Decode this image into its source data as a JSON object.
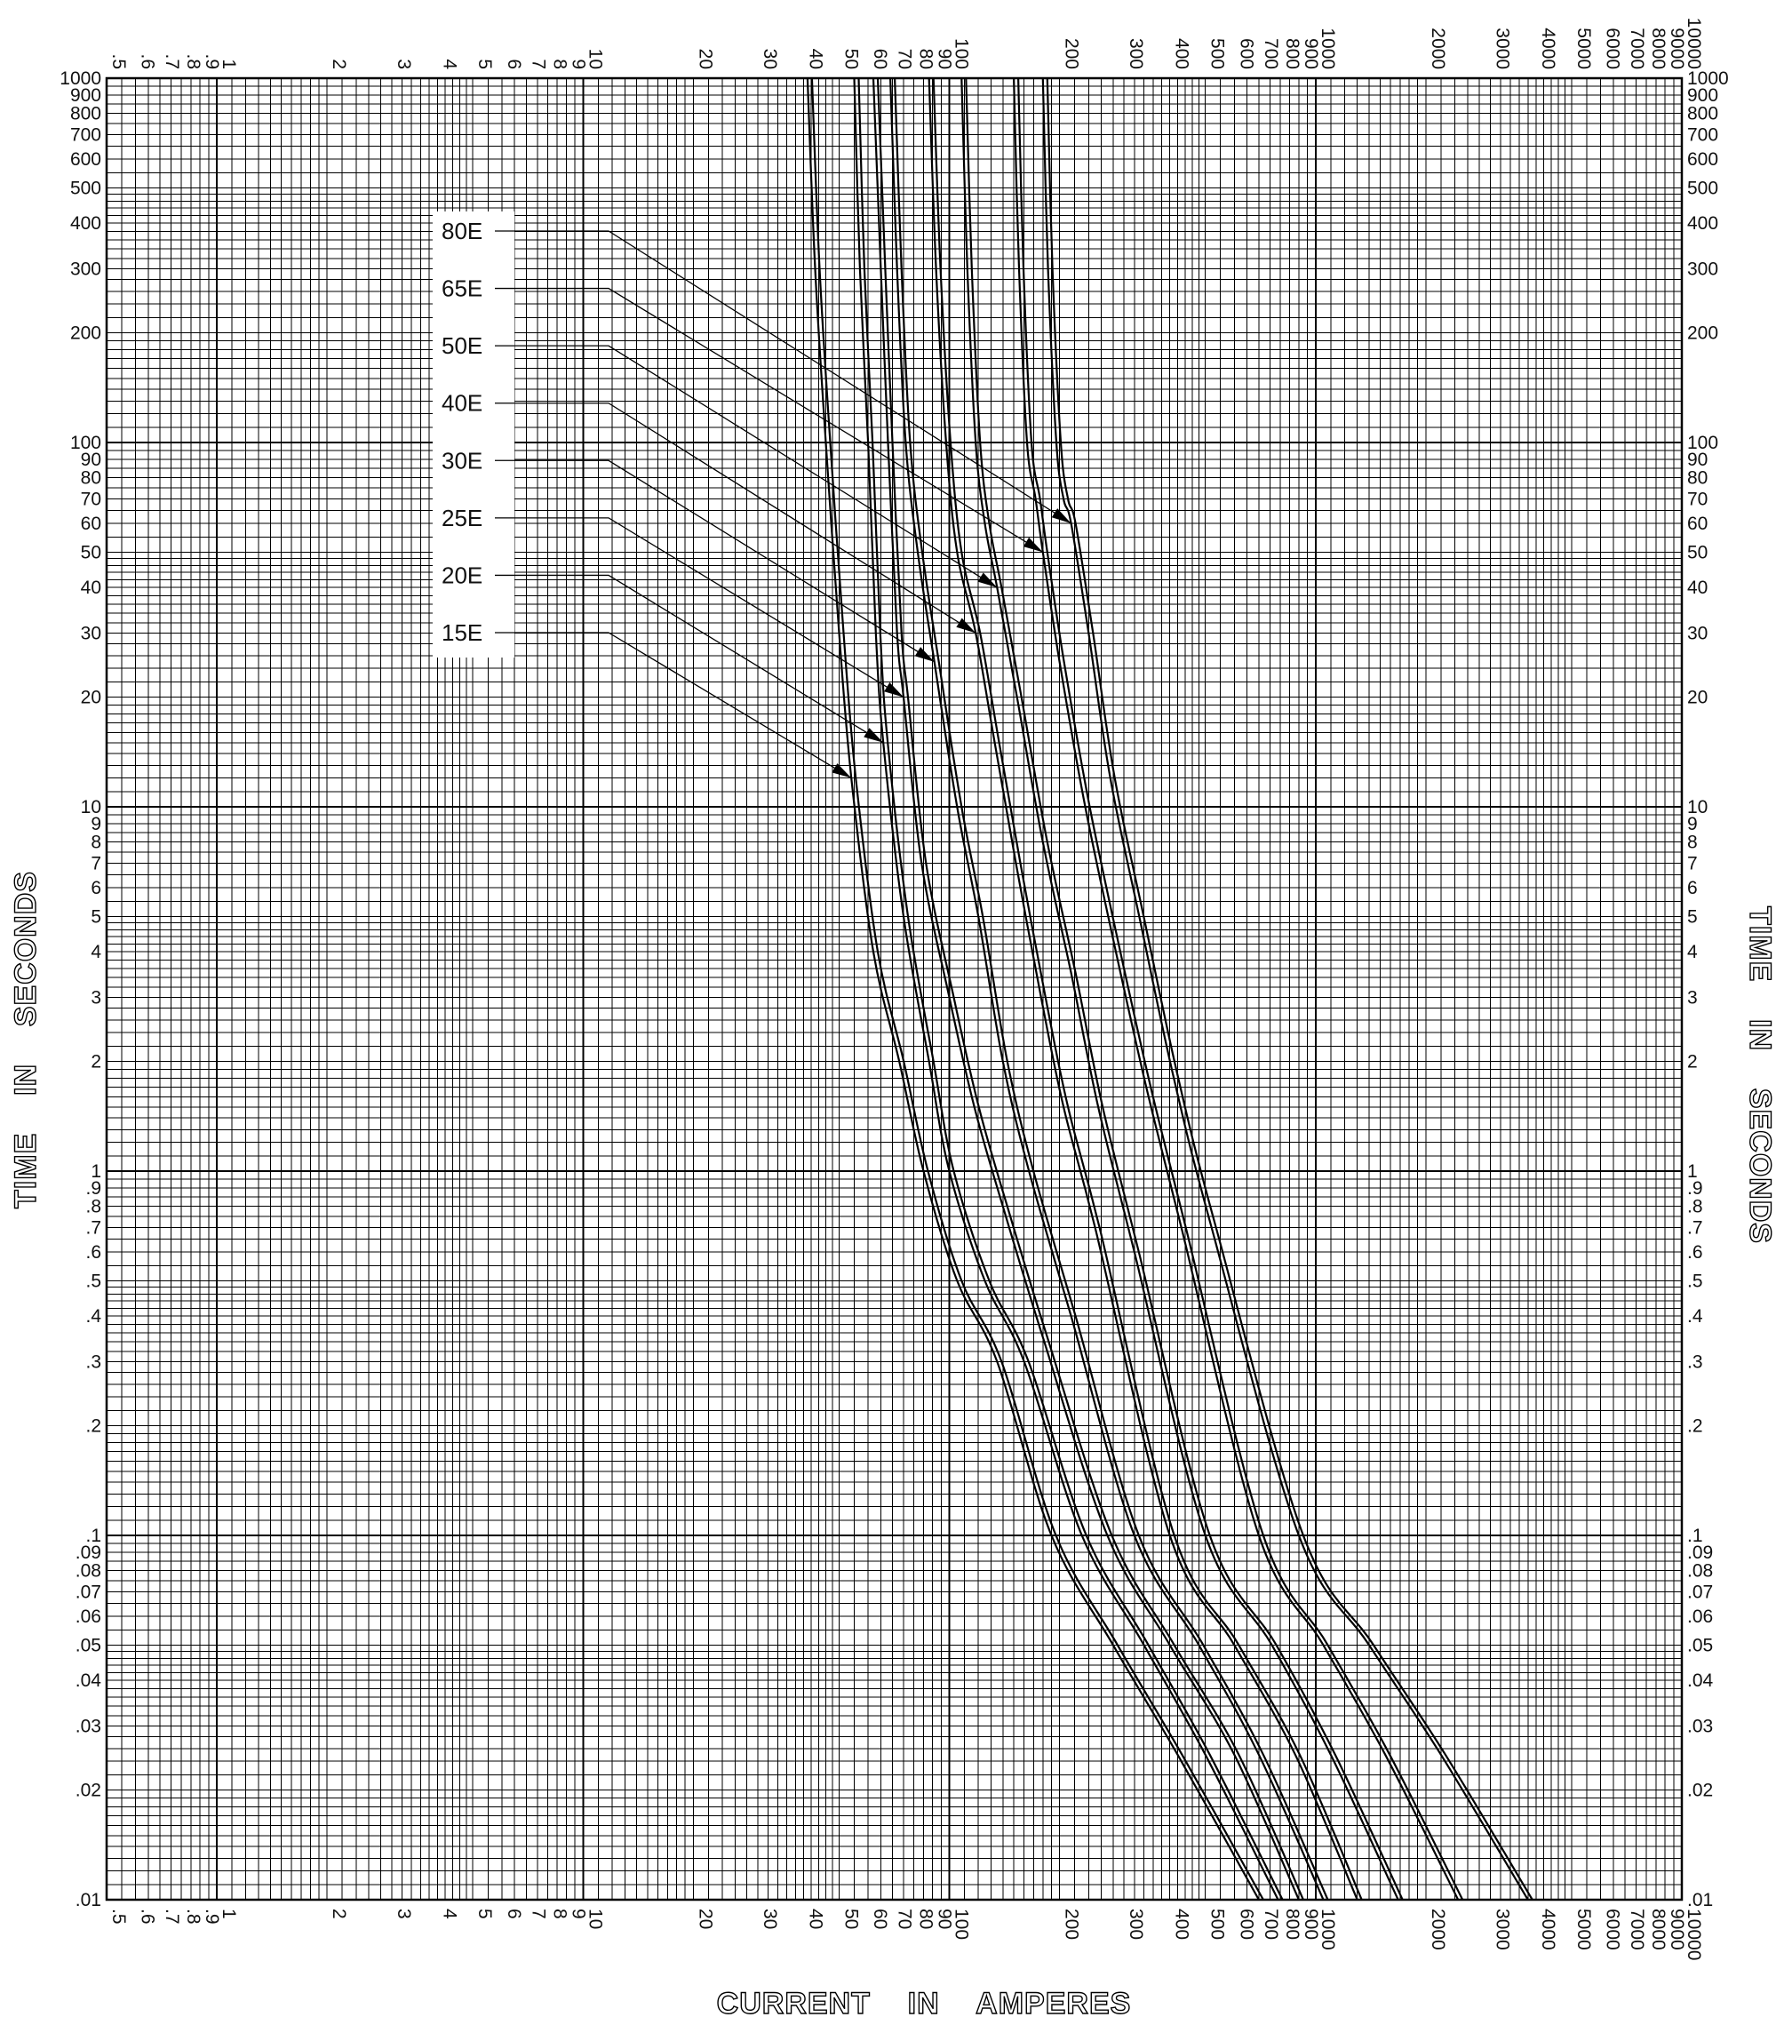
{
  "chart_data": {
    "type": "line",
    "title": "",
    "xlabel": "CURRENT    IN    AMPERES",
    "ylabel_left": "TIME    IN    SECONDS",
    "ylabel_right": "TIME    IN    SECONDS",
    "xscale": "log",
    "yscale": "log",
    "xlim": [
      0.5,
      10000
    ],
    "ylim": [
      0.01,
      1000
    ],
    "grid": true,
    "legend_placement": "upper-left (labels with leader arrows to curves)",
    "x_tick_labels": [
      ".5",
      ".6",
      ".7",
      ".8",
      ".9",
      "1",
      "2",
      "3",
      "4",
      "5",
      "6",
      "7",
      "8",
      "9",
      "10",
      "20",
      "30",
      "40",
      "50",
      "60",
      "70",
      "80",
      "90",
      "100",
      "200",
      "300",
      "400",
      "500",
      "600",
      "700",
      "800",
      "900",
      "1000",
      "2000",
      "3000",
      "4000",
      "5000",
      "6000",
      "7000",
      "8000",
      "9000",
      "10000"
    ],
    "y_tick_labels": [
      ".01",
      ".02",
      ".03",
      ".04",
      ".05",
      ".06",
      ".07",
      ".08",
      ".09",
      ".1",
      ".2",
      ".3",
      ".4",
      ".5",
      ".6",
      ".7",
      ".8",
      ".9",
      "1",
      "2",
      "3",
      "4",
      "5",
      "6",
      "7",
      "8",
      "9",
      "10",
      "20",
      "30",
      "40",
      "50",
      "60",
      "70",
      "80",
      "90",
      "100",
      "200",
      "300",
      "400",
      "500",
      "600",
      "700",
      "800",
      "900",
      "1000"
    ],
    "series": [
      {
        "name": "15E",
        "points": [
          [
            41,
            1000
          ],
          [
            43,
            300
          ],
          [
            46,
            100
          ],
          [
            50,
            30
          ],
          [
            54,
            12
          ],
          [
            62,
            4
          ],
          [
            73,
            2
          ],
          [
            85,
            1
          ],
          [
            105,
            0.5
          ],
          [
            135,
            0.3
          ],
          [
            190,
            0.1
          ],
          [
            280,
            0.05
          ],
          [
            420,
            0.025
          ],
          [
            700,
            0.01
          ]
        ]
      },
      {
        "name": "20E",
        "points": [
          [
            55,
            1000
          ],
          [
            57,
            300
          ],
          [
            60,
            100
          ],
          [
            63,
            30
          ],
          [
            66,
            15
          ],
          [
            75,
            5
          ],
          [
            88,
            2
          ],
          [
            100,
            1
          ],
          [
            125,
            0.5
          ],
          [
            160,
            0.3
          ],
          [
            230,
            0.1
          ],
          [
            340,
            0.05
          ],
          [
            500,
            0.025
          ],
          [
            790,
            0.01
          ]
        ]
      },
      {
        "name": "25E",
        "points": [
          [
            62,
            1000
          ],
          [
            65,
            300
          ],
          [
            68,
            100
          ],
          [
            72,
            30
          ],
          [
            75,
            20
          ],
          [
            84,
            7
          ],
          [
            100,
            3
          ],
          [
            117,
            1.5
          ],
          [
            140,
            0.8
          ],
          [
            180,
            0.35
          ],
          [
            270,
            0.1
          ],
          [
            400,
            0.05
          ],
          [
            600,
            0.025
          ],
          [
            900,
            0.01
          ]
        ]
      },
      {
        "name": "30E",
        "points": [
          [
            69,
            1000
          ],
          [
            72,
            300
          ],
          [
            76,
            100
          ],
          [
            82,
            50
          ],
          [
            91,
            25
          ],
          [
            105,
            10
          ],
          [
            120,
            5
          ],
          [
            140,
            2
          ],
          [
            165,
            1
          ],
          [
            215,
            0.4
          ],
          [
            320,
            0.1
          ],
          [
            480,
            0.05
          ],
          [
            700,
            0.025
          ],
          [
            1050,
            0.01
          ]
        ]
      },
      {
        "name": "40E",
        "points": [
          [
            88,
            1000
          ],
          [
            92,
            300
          ],
          [
            98,
            100
          ],
          [
            105,
            50
          ],
          [
            118,
            30
          ],
          [
            133,
            15
          ],
          [
            152,
            7
          ],
          [
            178,
            3
          ],
          [
            205,
            1.5
          ],
          [
            250,
            0.7
          ],
          [
            400,
            0.1
          ],
          [
            600,
            0.05
          ],
          [
            880,
            0.025
          ],
          [
            1300,
            0.01
          ]
        ]
      },
      {
        "name": "50E",
        "points": [
          [
            108,
            1000
          ],
          [
            112,
            300
          ],
          [
            118,
            100
          ],
          [
            125,
            60
          ],
          [
            135,
            40
          ],
          [
            153,
            20
          ],
          [
            180,
            8
          ],
          [
            215,
            3.5
          ],
          [
            255,
            1.5
          ],
          [
            320,
            0.6
          ],
          [
            500,
            0.1
          ],
          [
            760,
            0.05
          ],
          [
            1100,
            0.025
          ],
          [
            1680,
            0.01
          ]
        ]
      },
      {
        "name": "65E",
        "points": [
          [
            150,
            1000
          ],
          [
            155,
            300
          ],
          [
            163,
            100
          ],
          [
            172,
            70
          ],
          [
            180,
            50
          ],
          [
            200,
            25
          ],
          [
            235,
            10
          ],
          [
            285,
            4
          ],
          [
            345,
            1.7
          ],
          [
            430,
            0.7
          ],
          [
            700,
            0.1
          ],
          [
            1050,
            0.05
          ],
          [
            1550,
            0.025
          ],
          [
            2450,
            0.01
          ]
        ]
      },
      {
        "name": "80E",
        "points": [
          [
            180,
            1000
          ],
          [
            186,
            300
          ],
          [
            196,
            100
          ],
          [
            205,
            70
          ],
          [
            215,
            60
          ],
          [
            240,
            30
          ],
          [
            275,
            12
          ],
          [
            330,
            5
          ],
          [
            410,
            1.8
          ],
          [
            520,
            0.7
          ],
          [
            900,
            0.1
          ],
          [
            1400,
            0.05
          ],
          [
            2200,
            0.025
          ],
          [
            3800,
            0.01
          ]
        ]
      }
    ],
    "annotations": [
      {
        "label": "80E",
        "target": [
          215,
          60
        ]
      },
      {
        "label": "65E",
        "target": [
          180,
          50
        ]
      },
      {
        "label": "50E",
        "target": [
          135,
          40
        ]
      },
      {
        "label": "40E",
        "target": [
          118,
          30
        ]
      },
      {
        "label": "30E",
        "target": [
          91,
          25
        ]
      },
      {
        "label": "25E",
        "target": [
          75,
          20
        ]
      },
      {
        "label": "20E",
        "target": [
          66,
          15
        ]
      },
      {
        "label": "15E",
        "target": [
          54,
          12
        ]
      }
    ]
  }
}
